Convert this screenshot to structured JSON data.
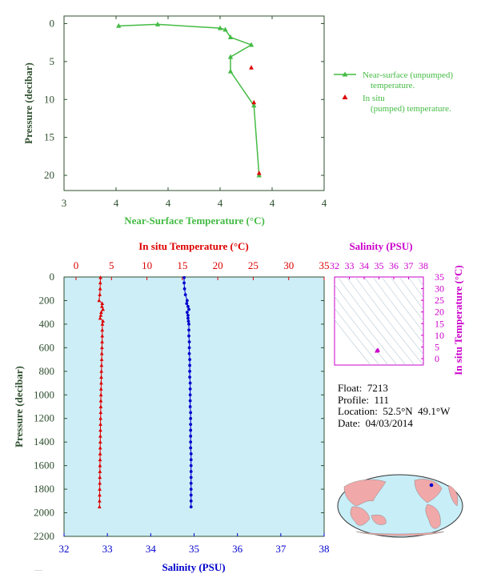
{
  "chart_data": [
    {
      "type": "line",
      "xlabel": "Near-Surface Temperature (°C)",
      "ylabel": "Pressure (decibar)",
      "xticks": [
        "3",
        "4",
        "4",
        "4",
        "4",
        "4"
      ],
      "yticks": [
        "0",
        "5",
        "10",
        "15",
        "20"
      ],
      "ylim": [
        22,
        -1
      ],
      "series": [
        {
          "name": "Near-surface (unpumped) temperature.",
          "color": "#44bb44",
          "marker": "triangle",
          "x": [
            3.71,
            3.86,
            4.1,
            4.12,
            4.14,
            4.22,
            4.14,
            4.14,
            4.23,
            4.25
          ],
          "y": [
            0.3,
            0.1,
            0.6,
            0.8,
            1.8,
            2.8,
            4.4,
            6.3,
            10.8,
            20.0
          ]
        },
        {
          "name": "In situ (pumped) temperature.",
          "color": "#dd0000",
          "marker": "triangle",
          "x": [
            4.22,
            4.23,
            4.25
          ],
          "y": [
            5.8,
            10.4,
            19.7
          ]
        }
      ]
    },
    {
      "type": "line",
      "ylabel": "Pressure (decibar)",
      "top_axis_label": "In situ Temperature (°C)",
      "bottom_axis_label": "Salinity (PSU)",
      "temperature_ticks": [
        0,
        5,
        10,
        15,
        20,
        25,
        30,
        35
      ],
      "salinity_ticks": [
        32,
        33,
        34,
        35,
        36,
        37,
        38
      ],
      "pressure_ticks": [
        0,
        200,
        400,
        600,
        800,
        1000,
        1200,
        1400,
        1600,
        1800,
        2000,
        2200
      ],
      "temperature_series": {
        "name": "In situ Temperature",
        "color": "#dd0000",
        "pressure": [
          5,
          50,
          100,
          150,
          200,
          225,
          250,
          275,
          300,
          325,
          350,
          375,
          400,
          450,
          500,
          550,
          600,
          650,
          700,
          750,
          800,
          850,
          900,
          950,
          1000,
          1050,
          1100,
          1150,
          1200,
          1250,
          1300,
          1350,
          1400,
          1450,
          1500,
          1550,
          1600,
          1650,
          1700,
          1750,
          1800,
          1850,
          1900,
          1950
        ],
        "temperature": [
          3.45,
          3.42,
          3.4,
          3.35,
          3.25,
          3.7,
          3.65,
          3.8,
          3.55,
          3.5,
          3.4,
          3.8,
          3.72,
          3.7,
          3.7,
          3.68,
          3.66,
          3.64,
          3.62,
          3.6,
          3.58,
          3.56,
          3.55,
          3.53,
          3.52,
          3.5,
          3.49,
          3.48,
          3.46,
          3.45,
          3.44,
          3.43,
          3.42,
          3.41,
          3.4,
          3.39,
          3.38,
          3.37,
          3.36,
          3.35,
          3.34,
          3.33,
          3.32,
          3.31
        ]
      },
      "salinity_series": {
        "name": "Salinity",
        "color": "#0000cc",
        "pressure": [
          5,
          50,
          100,
          150,
          200,
          225,
          250,
          275,
          300,
          325,
          350,
          375,
          400,
          450,
          500,
          550,
          600,
          650,
          700,
          750,
          800,
          850,
          900,
          950,
          1000,
          1050,
          1100,
          1150,
          1200,
          1250,
          1300,
          1350,
          1400,
          1450,
          1500,
          1550,
          1600,
          1650,
          1700,
          1750,
          1800,
          1850,
          1900,
          1950
        ],
        "salinity": [
          34.77,
          34.77,
          34.78,
          34.8,
          34.84,
          34.83,
          34.86,
          34.88,
          34.84,
          34.86,
          34.86,
          34.87,
          34.88,
          34.88,
          34.88,
          34.89,
          34.89,
          34.89,
          34.9,
          34.9,
          34.9,
          34.9,
          34.91,
          34.91,
          34.91,
          34.91,
          34.91,
          34.92,
          34.92,
          34.92,
          34.92,
          34.92,
          34.92,
          34.92,
          34.93,
          34.93,
          34.93,
          34.93,
          34.93,
          34.93,
          34.93,
          34.93,
          34.93,
          34.93
        ]
      }
    },
    {
      "type": "scatter",
      "title": "Salinity (PSU)",
      "ylabel": "In situ Temperature (°C)",
      "xticks": [
        32,
        33,
        34,
        35,
        36,
        37,
        38
      ],
      "yticks": [
        0,
        5,
        10,
        15,
        20,
        25,
        30,
        35
      ],
      "points": {
        "salinity": [
          34.85,
          34.9,
          34.93
        ],
        "temperature": [
          3.3,
          3.5,
          3.7
        ]
      },
      "color": "#cc00cc"
    }
  ],
  "float_info": {
    "float": "Float:  7213",
    "profile": "Profile:  111",
    "location": "Location:  52.5°N  49.1°W",
    "date": "Date:  04/03/2014"
  },
  "map": {
    "marker_lat": 52.5,
    "marker_lon": -49.1
  },
  "colors": {
    "green": "#44bb44",
    "red": "#dd0000",
    "blue": "#0000cc",
    "magenta": "#cc00cc",
    "panel": "#cdeef7",
    "land": "#f0a8a8",
    "ocean": "#c8eef8"
  }
}
